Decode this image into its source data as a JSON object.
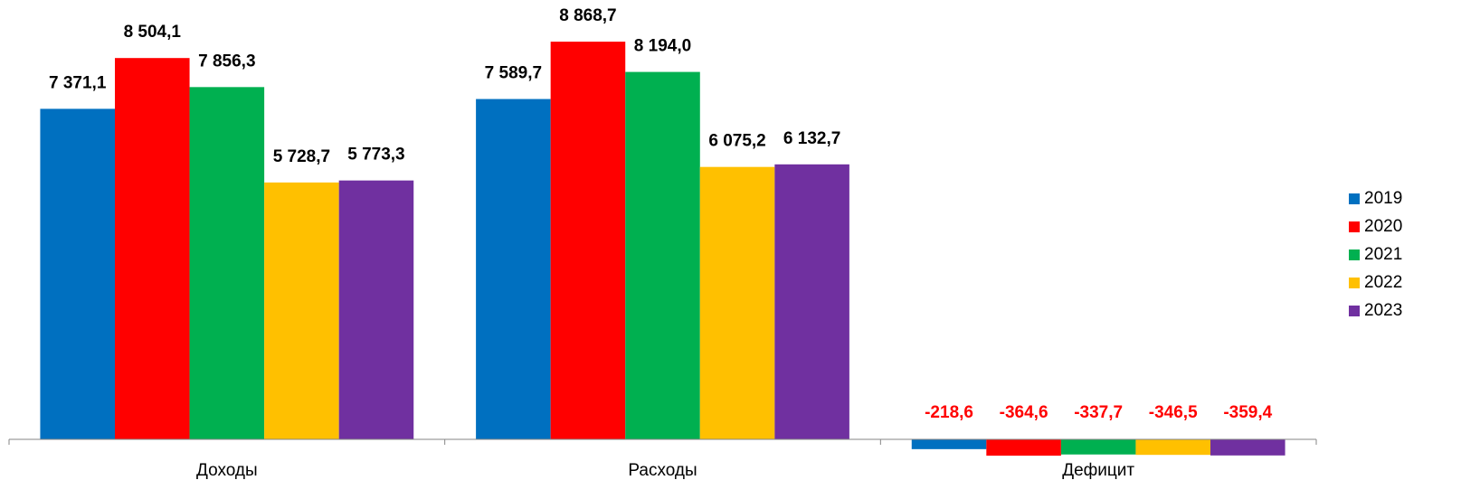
{
  "chart_data": {
    "type": "bar",
    "categories": [
      "Доходы",
      "Расходы",
      "Дефицит"
    ],
    "series": [
      {
        "name": "2019",
        "color": "#0070c0",
        "values": [
          7371.1,
          7589.7,
          -218.6
        ],
        "value_labels": [
          "7 371,1",
          "7 589,7",
          "-218,6"
        ]
      },
      {
        "name": "2020",
        "color": "#ff0000",
        "values": [
          8504.1,
          8868.7,
          -364.6
        ],
        "value_labels": [
          "8 504,1",
          "8 868,7",
          "-364,6"
        ]
      },
      {
        "name": "2021",
        "color": "#00b050",
        "values": [
          7856.3,
          8194.0,
          -337.7
        ],
        "value_labels": [
          "7 856,3",
          "8 194,0",
          "-337,7"
        ]
      },
      {
        "name": "2022",
        "color": "#ffc000",
        "values": [
          5728.7,
          6075.2,
          -346.5
        ],
        "value_labels": [
          "5 728,7",
          "6 075,2",
          "-346,5"
        ]
      },
      {
        "name": "2023",
        "color": "#7030a0",
        "values": [
          5773.3,
          6132.7,
          -359.4
        ],
        "value_labels": [
          "5 773,3",
          "6 132,7",
          "-359,4"
        ]
      }
    ],
    "ylim": [
      -1000,
      9000
    ],
    "label_color": "#000000",
    "negative_label_color": "#ff0000",
    "legend": "right"
  }
}
